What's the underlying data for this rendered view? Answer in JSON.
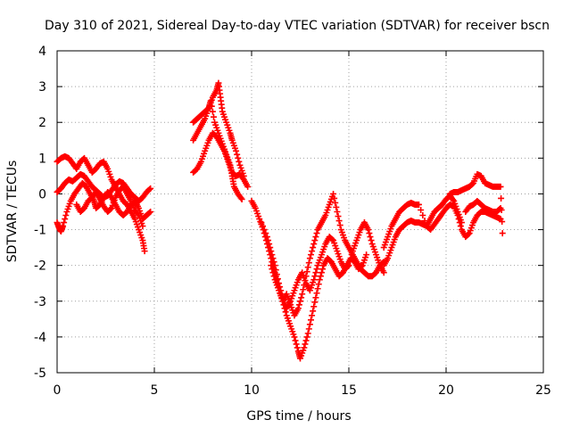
{
  "chart_data": {
    "type": "scatter",
    "title": "Day 310 of 2021, Sidereal Day-to-day VTEC variation (SDTVAR) for receiver bscn",
    "xlabel": "GPS time / hours",
    "ylabel": "SDTVAR / TECUs",
    "xlim": [
      0,
      25
    ],
    "ylim": [
      -5,
      4
    ],
    "x_ticks": [
      0,
      5,
      10,
      15,
      20,
      25
    ],
    "y_ticks": [
      -5,
      -4,
      -3,
      -2,
      -1,
      0,
      1,
      2,
      3,
      4
    ],
    "grid": true,
    "marker": "+",
    "marker_color": "#ff0000",
    "series": [
      {
        "points": [
          [
            0.0,
            0.9
          ],
          [
            0.2,
            1.0
          ],
          [
            0.4,
            1.05
          ],
          [
            0.6,
            1.0
          ],
          [
            0.8,
            0.85
          ],
          [
            1.0,
            0.7
          ],
          [
            1.2,
            0.9
          ],
          [
            1.4,
            1.0
          ],
          [
            1.6,
            0.8
          ],
          [
            1.8,
            0.6
          ],
          [
            2.0,
            0.7
          ],
          [
            2.2,
            0.85
          ],
          [
            2.4,
            0.9
          ],
          [
            2.6,
            0.7
          ],
          [
            2.8,
            0.4
          ],
          [
            3.0,
            0.2
          ],
          [
            3.2,
            0.0
          ],
          [
            3.4,
            -0.2
          ],
          [
            3.6,
            -0.3
          ],
          [
            3.8,
            -0.5
          ],
          [
            4.0,
            -0.7
          ],
          [
            4.2,
            -1.0
          ],
          [
            4.4,
            -1.3
          ],
          [
            4.5,
            -1.6
          ],
          [
            0.0,
            0.05
          ],
          [
            0.2,
            0.15
          ],
          [
            0.4,
            0.3
          ],
          [
            0.6,
            0.4
          ],
          [
            0.8,
            0.35
          ],
          [
            1.0,
            0.45
          ],
          [
            1.2,
            0.55
          ],
          [
            1.4,
            0.5
          ],
          [
            1.6,
            0.35
          ],
          [
            1.8,
            0.2
          ],
          [
            2.0,
            0.1
          ],
          [
            2.2,
            0.0
          ],
          [
            2.4,
            -0.1
          ],
          [
            2.6,
            -0.05
          ],
          [
            2.8,
            0.1
          ],
          [
            3.0,
            0.25
          ],
          [
            3.2,
            0.35
          ],
          [
            3.4,
            0.3
          ],
          [
            3.6,
            0.15
          ],
          [
            3.8,
            0.0
          ],
          [
            4.0,
            -0.1
          ],
          [
            4.2,
            -0.2
          ],
          [
            4.4,
            -0.1
          ],
          [
            4.6,
            0.05
          ],
          [
            4.8,
            0.15
          ],
          [
            0.0,
            -0.8
          ],
          [
            0.1,
            -0.95
          ],
          [
            0.2,
            -1.05
          ],
          [
            0.3,
            -0.9
          ],
          [
            0.5,
            -0.5
          ],
          [
            0.7,
            -0.2
          ],
          [
            0.9,
            0.0
          ],
          [
            1.1,
            0.15
          ],
          [
            1.3,
            0.3
          ],
          [
            1.5,
            0.2
          ],
          [
            1.7,
            0.0
          ],
          [
            1.9,
            -0.2
          ],
          [
            2.0,
            -0.4
          ],
          [
            2.2,
            -0.3
          ],
          [
            2.4,
            -0.1
          ],
          [
            2.6,
            0.05
          ],
          [
            2.8,
            -0.1
          ],
          [
            3.0,
            -0.3
          ],
          [
            3.2,
            -0.5
          ],
          [
            3.4,
            -0.6
          ],
          [
            3.6,
            -0.5
          ],
          [
            3.8,
            -0.3
          ],
          [
            4.0,
            -0.2
          ],
          [
            4.2,
            -0.4
          ],
          [
            4.4,
            -0.7
          ],
          [
            4.6,
            -0.6
          ],
          [
            4.8,
            -0.5
          ],
          [
            1.0,
            -0.3
          ],
          [
            1.2,
            -0.5
          ],
          [
            1.4,
            -0.4
          ],
          [
            1.6,
            -0.2
          ],
          [
            1.8,
            -0.1
          ],
          [
            2.0,
            0.05
          ],
          [
            2.2,
            -0.15
          ],
          [
            2.4,
            -0.35
          ],
          [
            2.6,
            -0.5
          ],
          [
            2.8,
            -0.4
          ],
          [
            3.0,
            -0.1
          ],
          [
            3.2,
            0.1
          ],
          [
            3.4,
            0.2
          ],
          [
            3.6,
            0.0
          ],
          [
            3.8,
            -0.2
          ],
          [
            4.0,
            -0.45
          ],
          [
            4.2,
            -0.6
          ],
          [
            4.4,
            -0.9
          ],
          [
            7.0,
            0.6
          ],
          [
            7.2,
            0.7
          ],
          [
            7.4,
            0.9
          ],
          [
            7.6,
            1.2
          ],
          [
            7.8,
            1.5
          ],
          [
            8.0,
            1.7
          ],
          [
            8.2,
            1.6
          ],
          [
            8.4,
            1.4
          ],
          [
            8.6,
            1.2
          ],
          [
            8.8,
            0.9
          ],
          [
            9.0,
            0.6
          ],
          [
            9.2,
            0.5
          ],
          [
            9.4,
            0.55
          ],
          [
            9.6,
            0.4
          ],
          [
            9.8,
            0.2
          ],
          [
            7.0,
            1.5
          ],
          [
            7.2,
            1.7
          ],
          [
            7.4,
            1.9
          ],
          [
            7.6,
            2.1
          ],
          [
            7.8,
            2.4
          ],
          [
            8.0,
            2.7
          ],
          [
            8.2,
            2.9
          ],
          [
            8.3,
            3.1
          ],
          [
            8.4,
            2.7
          ],
          [
            8.5,
            2.3
          ],
          [
            8.7,
            2.0
          ],
          [
            8.9,
            1.7
          ],
          [
            9.0,
            1.5
          ],
          [
            9.2,
            1.2
          ],
          [
            9.4,
            0.8
          ],
          [
            9.6,
            0.5
          ],
          [
            7.0,
            2.0
          ],
          [
            7.2,
            2.1
          ],
          [
            7.4,
            2.2
          ],
          [
            7.6,
            2.3
          ],
          [
            7.8,
            2.4
          ],
          [
            7.9,
            2.6
          ],
          [
            8.1,
            2.0
          ],
          [
            8.3,
            1.7
          ],
          [
            8.5,
            1.4
          ],
          [
            8.7,
            1.1
          ],
          [
            8.9,
            0.8
          ],
          [
            9.0,
            0.5
          ],
          [
            9.1,
            0.2
          ],
          [
            9.3,
            0.0
          ],
          [
            9.5,
            -0.15
          ],
          [
            10.0,
            -0.2
          ],
          [
            10.2,
            -0.4
          ],
          [
            10.4,
            -0.7
          ],
          [
            10.6,
            -1.0
          ],
          [
            10.8,
            -1.4
          ],
          [
            11.0,
            -1.8
          ],
          [
            11.2,
            -2.2
          ],
          [
            11.4,
            -2.6
          ],
          [
            11.6,
            -3.0
          ],
          [
            11.8,
            -3.4
          ],
          [
            12.0,
            -3.7
          ],
          [
            12.2,
            -4.0
          ],
          [
            12.4,
            -4.4
          ],
          [
            12.5,
            -4.6
          ],
          [
            12.7,
            -4.3
          ],
          [
            12.9,
            -3.9
          ],
          [
            13.1,
            -3.4
          ],
          [
            13.3,
            -2.9
          ],
          [
            13.5,
            -2.4
          ],
          [
            13.7,
            -2.0
          ],
          [
            13.9,
            -1.8
          ],
          [
            14.1,
            -1.9
          ],
          [
            14.3,
            -2.1
          ],
          [
            14.5,
            -2.3
          ],
          [
            14.7,
            -2.2
          ],
          [
            14.9,
            -2.0
          ],
          [
            15.1,
            -1.8
          ],
          [
            15.3,
            -1.9
          ],
          [
            15.5,
            -2.1
          ],
          [
            15.7,
            -2.0
          ],
          [
            15.9,
            -1.7
          ],
          [
            10.5,
            -0.8
          ],
          [
            10.8,
            -1.2
          ],
          [
            11.0,
            -1.6
          ],
          [
            11.2,
            -2.0
          ],
          [
            11.4,
            -2.5
          ],
          [
            11.6,
            -2.9
          ],
          [
            11.8,
            -3.2
          ],
          [
            12.0,
            -3.0
          ],
          [
            12.2,
            -2.7
          ],
          [
            12.4,
            -2.4
          ],
          [
            12.6,
            -2.2
          ],
          [
            12.8,
            -2.5
          ],
          [
            13.0,
            -2.7
          ],
          [
            13.2,
            -2.4
          ],
          [
            13.4,
            -2.0
          ],
          [
            13.6,
            -1.7
          ],
          [
            13.8,
            -1.4
          ],
          [
            14.0,
            -1.2
          ],
          [
            14.2,
            -1.3
          ],
          [
            14.4,
            -1.6
          ],
          [
            14.6,
            -1.9
          ],
          [
            14.8,
            -2.1
          ],
          [
            15.0,
            -2.0
          ],
          [
            15.2,
            -1.6
          ],
          [
            15.4,
            -1.3
          ],
          [
            15.6,
            -1.0
          ],
          [
            15.8,
            -0.8
          ],
          [
            16.0,
            -1.0
          ],
          [
            16.2,
            -1.4
          ],
          [
            16.4,
            -1.7
          ],
          [
            16.6,
            -2.0
          ],
          [
            16.8,
            -2.2
          ],
          [
            11.0,
            -2.0
          ],
          [
            11.2,
            -2.4
          ],
          [
            11.4,
            -2.7
          ],
          [
            11.6,
            -3.0
          ],
          [
            11.8,
            -2.8
          ],
          [
            12.0,
            -3.1
          ],
          [
            12.2,
            -3.4
          ],
          [
            12.4,
            -3.2
          ],
          [
            12.6,
            -2.8
          ],
          [
            12.8,
            -2.3
          ],
          [
            13.0,
            -1.8
          ],
          [
            13.2,
            -1.4
          ],
          [
            13.4,
            -1.0
          ],
          [
            13.6,
            -0.8
          ],
          [
            13.8,
            -0.6
          ],
          [
            14.0,
            -0.3
          ],
          [
            14.2,
            0.0
          ],
          [
            14.4,
            -0.5
          ],
          [
            14.6,
            -1.0
          ],
          [
            14.8,
            -1.3
          ],
          [
            15.0,
            -1.5
          ],
          [
            15.2,
            -1.7
          ],
          [
            15.4,
            -1.9
          ],
          [
            15.6,
            -2.1
          ],
          [
            15.8,
            -2.2
          ],
          [
            16.0,
            -2.3
          ],
          [
            16.2,
            -2.3
          ],
          [
            16.4,
            -2.2
          ],
          [
            16.6,
            -2.0
          ],
          [
            16.8,
            -1.9
          ],
          [
            16.8,
            -2.0
          ],
          [
            17.0,
            -1.8
          ],
          [
            17.2,
            -1.5
          ],
          [
            17.4,
            -1.2
          ],
          [
            17.6,
            -1.0
          ],
          [
            17.8,
            -0.9
          ],
          [
            18.0,
            -0.8
          ],
          [
            18.2,
            -0.75
          ],
          [
            18.4,
            -0.8
          ],
          [
            18.6,
            -0.8
          ],
          [
            18.8,
            -0.85
          ],
          [
            19.0,
            -0.9
          ],
          [
            19.2,
            -0.7
          ],
          [
            19.4,
            -0.5
          ],
          [
            19.6,
            -0.4
          ],
          [
            19.8,
            -0.3
          ],
          [
            20.0,
            -0.15
          ],
          [
            20.2,
            -0.05
          ],
          [
            20.4,
            -0.2
          ],
          [
            20.6,
            -0.5
          ],
          [
            20.8,
            -0.8
          ],
          [
            16.8,
            -1.5
          ],
          [
            17.0,
            -1.2
          ],
          [
            17.2,
            -0.9
          ],
          [
            17.4,
            -0.7
          ],
          [
            17.6,
            -0.5
          ],
          [
            17.8,
            -0.4
          ],
          [
            18.0,
            -0.3
          ],
          [
            18.2,
            -0.25
          ],
          [
            18.4,
            -0.3
          ],
          [
            18.6,
            -0.3
          ],
          [
            19.0,
            -0.9
          ],
          [
            19.2,
            -1.0
          ],
          [
            19.4,
            -0.85
          ],
          [
            19.6,
            -0.7
          ],
          [
            19.8,
            -0.55
          ],
          [
            20.0,
            -0.4
          ],
          [
            20.2,
            -0.3
          ],
          [
            20.4,
            -0.35
          ],
          [
            20.6,
            -0.6
          ],
          [
            20.8,
            -1.0
          ],
          [
            21.0,
            -1.2
          ],
          [
            21.2,
            -1.1
          ],
          [
            21.4,
            -0.8
          ],
          [
            21.6,
            -0.6
          ],
          [
            21.8,
            -0.5
          ],
          [
            22.0,
            -0.5
          ],
          [
            22.2,
            -0.55
          ],
          [
            22.4,
            -0.6
          ],
          [
            22.6,
            -0.65
          ],
          [
            22.8,
            -0.7
          ],
          [
            20.2,
            0.0
          ],
          [
            20.4,
            0.05
          ],
          [
            20.6,
            0.05
          ],
          [
            20.8,
            0.1
          ],
          [
            21.0,
            0.15
          ],
          [
            21.2,
            0.2
          ],
          [
            21.4,
            0.3
          ],
          [
            21.6,
            0.55
          ],
          [
            21.8,
            0.5
          ],
          [
            22.0,
            0.3
          ],
          [
            22.2,
            0.25
          ],
          [
            22.4,
            0.2
          ],
          [
            22.6,
            0.2
          ],
          [
            22.8,
            0.2
          ],
          [
            22.9,
            -1.1
          ],
          [
            21.0,
            -0.5
          ],
          [
            21.2,
            -0.35
          ],
          [
            21.4,
            -0.3
          ],
          [
            21.6,
            -0.2
          ],
          [
            21.8,
            -0.3
          ],
          [
            22.0,
            -0.4
          ],
          [
            22.2,
            -0.45
          ],
          [
            22.4,
            -0.5
          ],
          [
            22.6,
            -0.5
          ],
          [
            22.8,
            -0.4
          ]
        ]
      }
    ]
  }
}
